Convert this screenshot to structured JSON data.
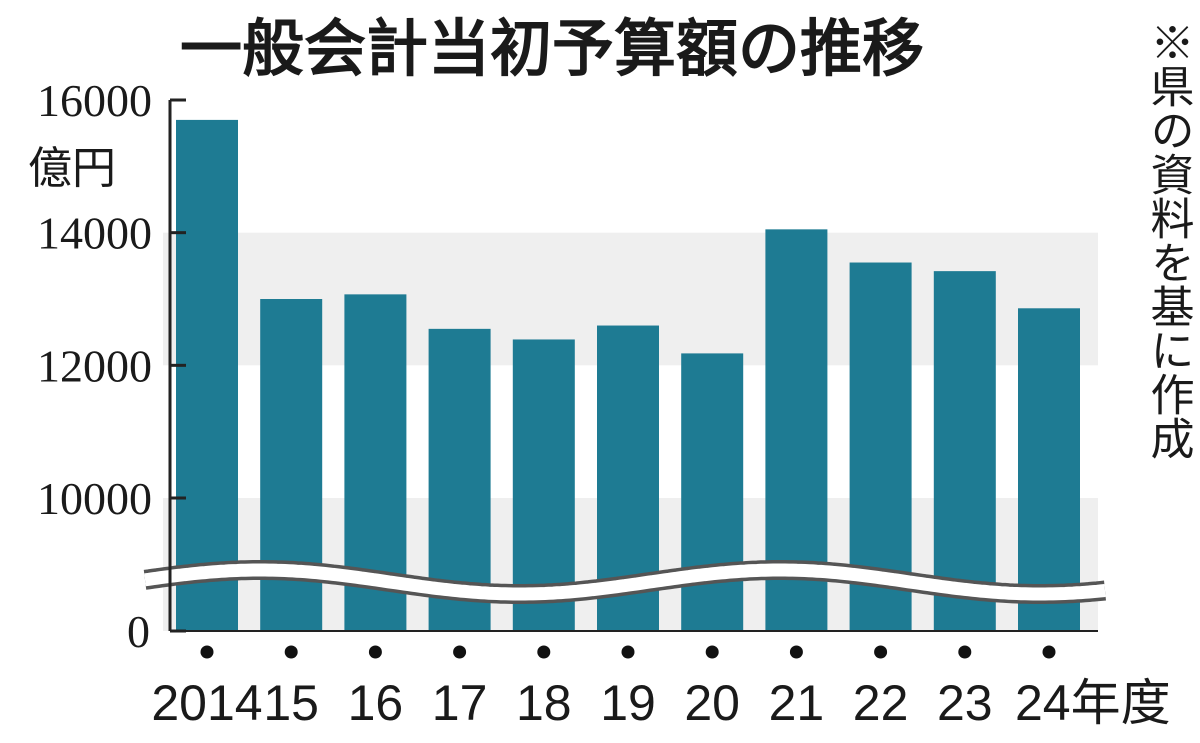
{
  "chart_data": {
    "type": "bar",
    "title": "一般会計当初予算額の推移",
    "unit_label": "億円",
    "note": "※県の資料を基に作成",
    "axis_break": true,
    "categories": [
      "2014",
      "15",
      "16",
      "17",
      "18",
      "19",
      "20",
      "21",
      "22",
      "23",
      "24年度"
    ],
    "values": [
      15700,
      13000,
      13070,
      12550,
      12390,
      12600,
      12180,
      14050,
      13550,
      13420,
      12860
    ],
    "ylim": [
      10000,
      16000
    ],
    "yticks": [
      {
        "value": 16000,
        "label": "16000"
      },
      {
        "value": 14000,
        "label": "14000"
      },
      {
        "value": 12000,
        "label": "12000"
      },
      {
        "value": 10000,
        "label": "10000"
      },
      {
        "value": 0,
        "label": "0"
      }
    ],
    "grid": "alternating bands",
    "colors": {
      "bar": "#1e7b93",
      "band": "#efefef",
      "axis": "#222222",
      "break_line": "#555555"
    }
  }
}
